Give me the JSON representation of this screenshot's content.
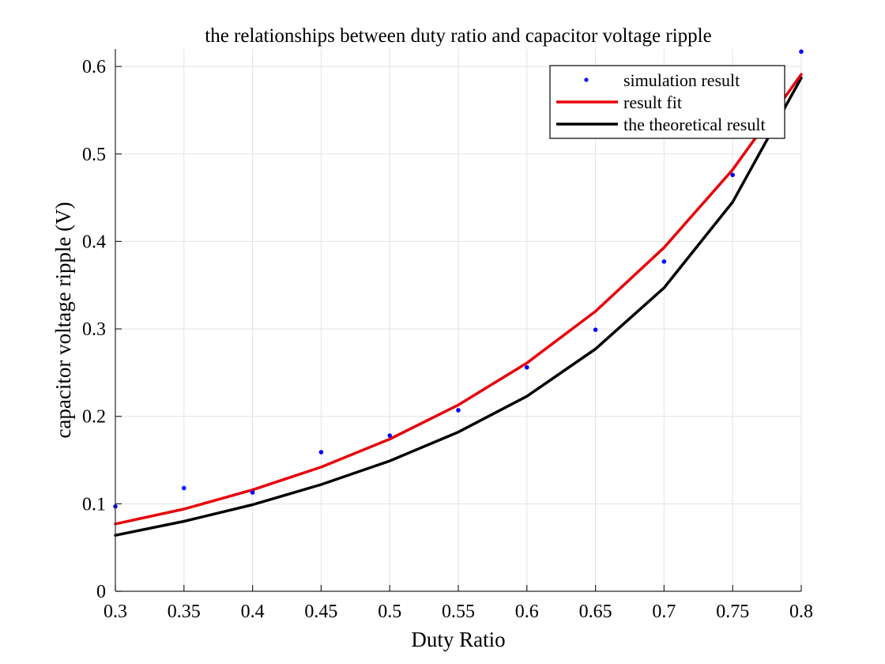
{
  "chart_data": {
    "type": "line",
    "title": "the relationships between duty ratio and capacitor voltage ripple",
    "xlabel": "Duty Ratio",
    "ylabel": "capacitor voltage ripple (V)",
    "xlim": [
      0.3,
      0.8
    ],
    "ylim": [
      0,
      0.62
    ],
    "xticks": [
      0.3,
      0.35,
      0.4,
      0.45,
      0.5,
      0.55,
      0.6,
      0.65,
      0.7,
      0.75,
      0.8
    ],
    "xtick_labels": [
      "0.3",
      "0.35",
      "0.4",
      "0.45",
      "0.5",
      "0.55",
      "0.6",
      "0.65",
      "0.7",
      "0.75",
      "0.8"
    ],
    "yticks": [
      0,
      0.1,
      0.2,
      0.3,
      0.4,
      0.5,
      0.6
    ],
    "ytick_labels": [
      "0",
      "0.1",
      "0.2",
      "0.3",
      "0.4",
      "0.5",
      "0.6"
    ],
    "grid": true,
    "legend_position": "top-right",
    "series": [
      {
        "name": "simulation result",
        "kind": "scatter",
        "color": "#0000ff",
        "x": [
          0.3,
          0.35,
          0.4,
          0.45,
          0.5,
          0.55,
          0.6,
          0.65,
          0.7,
          0.75,
          0.8
        ],
        "y": [
          0.097,
          0.118,
          0.113,
          0.159,
          0.178,
          0.207,
          0.256,
          0.299,
          0.377,
          0.476,
          0.617
        ]
      },
      {
        "name": "result fit",
        "kind": "line",
        "color": "#e8000b",
        "x": [
          0.3,
          0.35,
          0.4,
          0.45,
          0.5,
          0.55,
          0.6,
          0.65,
          0.7,
          0.75,
          0.8
        ],
        "y": [
          0.077,
          0.094,
          0.116,
          0.142,
          0.174,
          0.213,
          0.261,
          0.32,
          0.393,
          0.482,
          0.591
        ]
      },
      {
        "name": "the theoretical result",
        "kind": "line",
        "color": "#000000",
        "x": [
          0.3,
          0.35,
          0.4,
          0.45,
          0.5,
          0.55,
          0.6,
          0.65,
          0.7,
          0.75,
          0.8
        ],
        "y": [
          0.064,
          0.08,
          0.099,
          0.122,
          0.149,
          0.182,
          0.223,
          0.277,
          0.347,
          0.445,
          0.587
        ]
      }
    ]
  }
}
